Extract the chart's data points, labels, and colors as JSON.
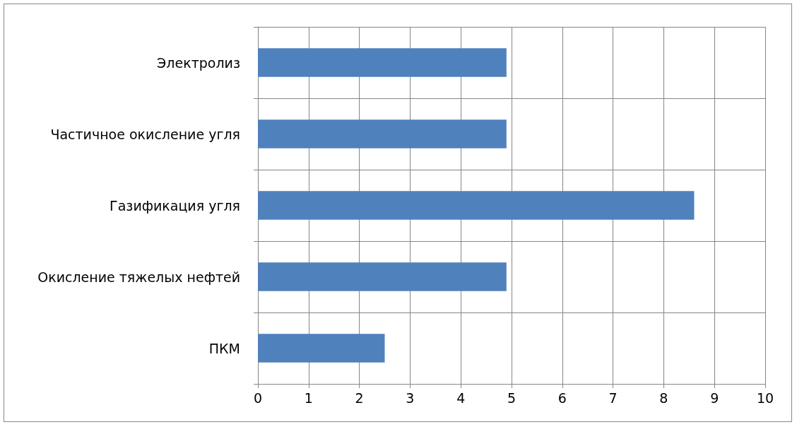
{
  "chart_data": {
    "type": "bar",
    "orientation": "horizontal",
    "categories": [
      "Электролиз",
      "Частичное окисление угля",
      "Газификация угля",
      "Окисление тяжелых нефтей",
      "ПКМ"
    ],
    "values": [
      4.9,
      4.9,
      8.6,
      4.9,
      2.5
    ],
    "color": "#4f81bd",
    "xlim": [
      0,
      10
    ],
    "xticks": [
      0,
      1,
      2,
      3,
      4,
      5,
      6,
      7,
      8,
      9,
      10
    ],
    "grid": true
  }
}
